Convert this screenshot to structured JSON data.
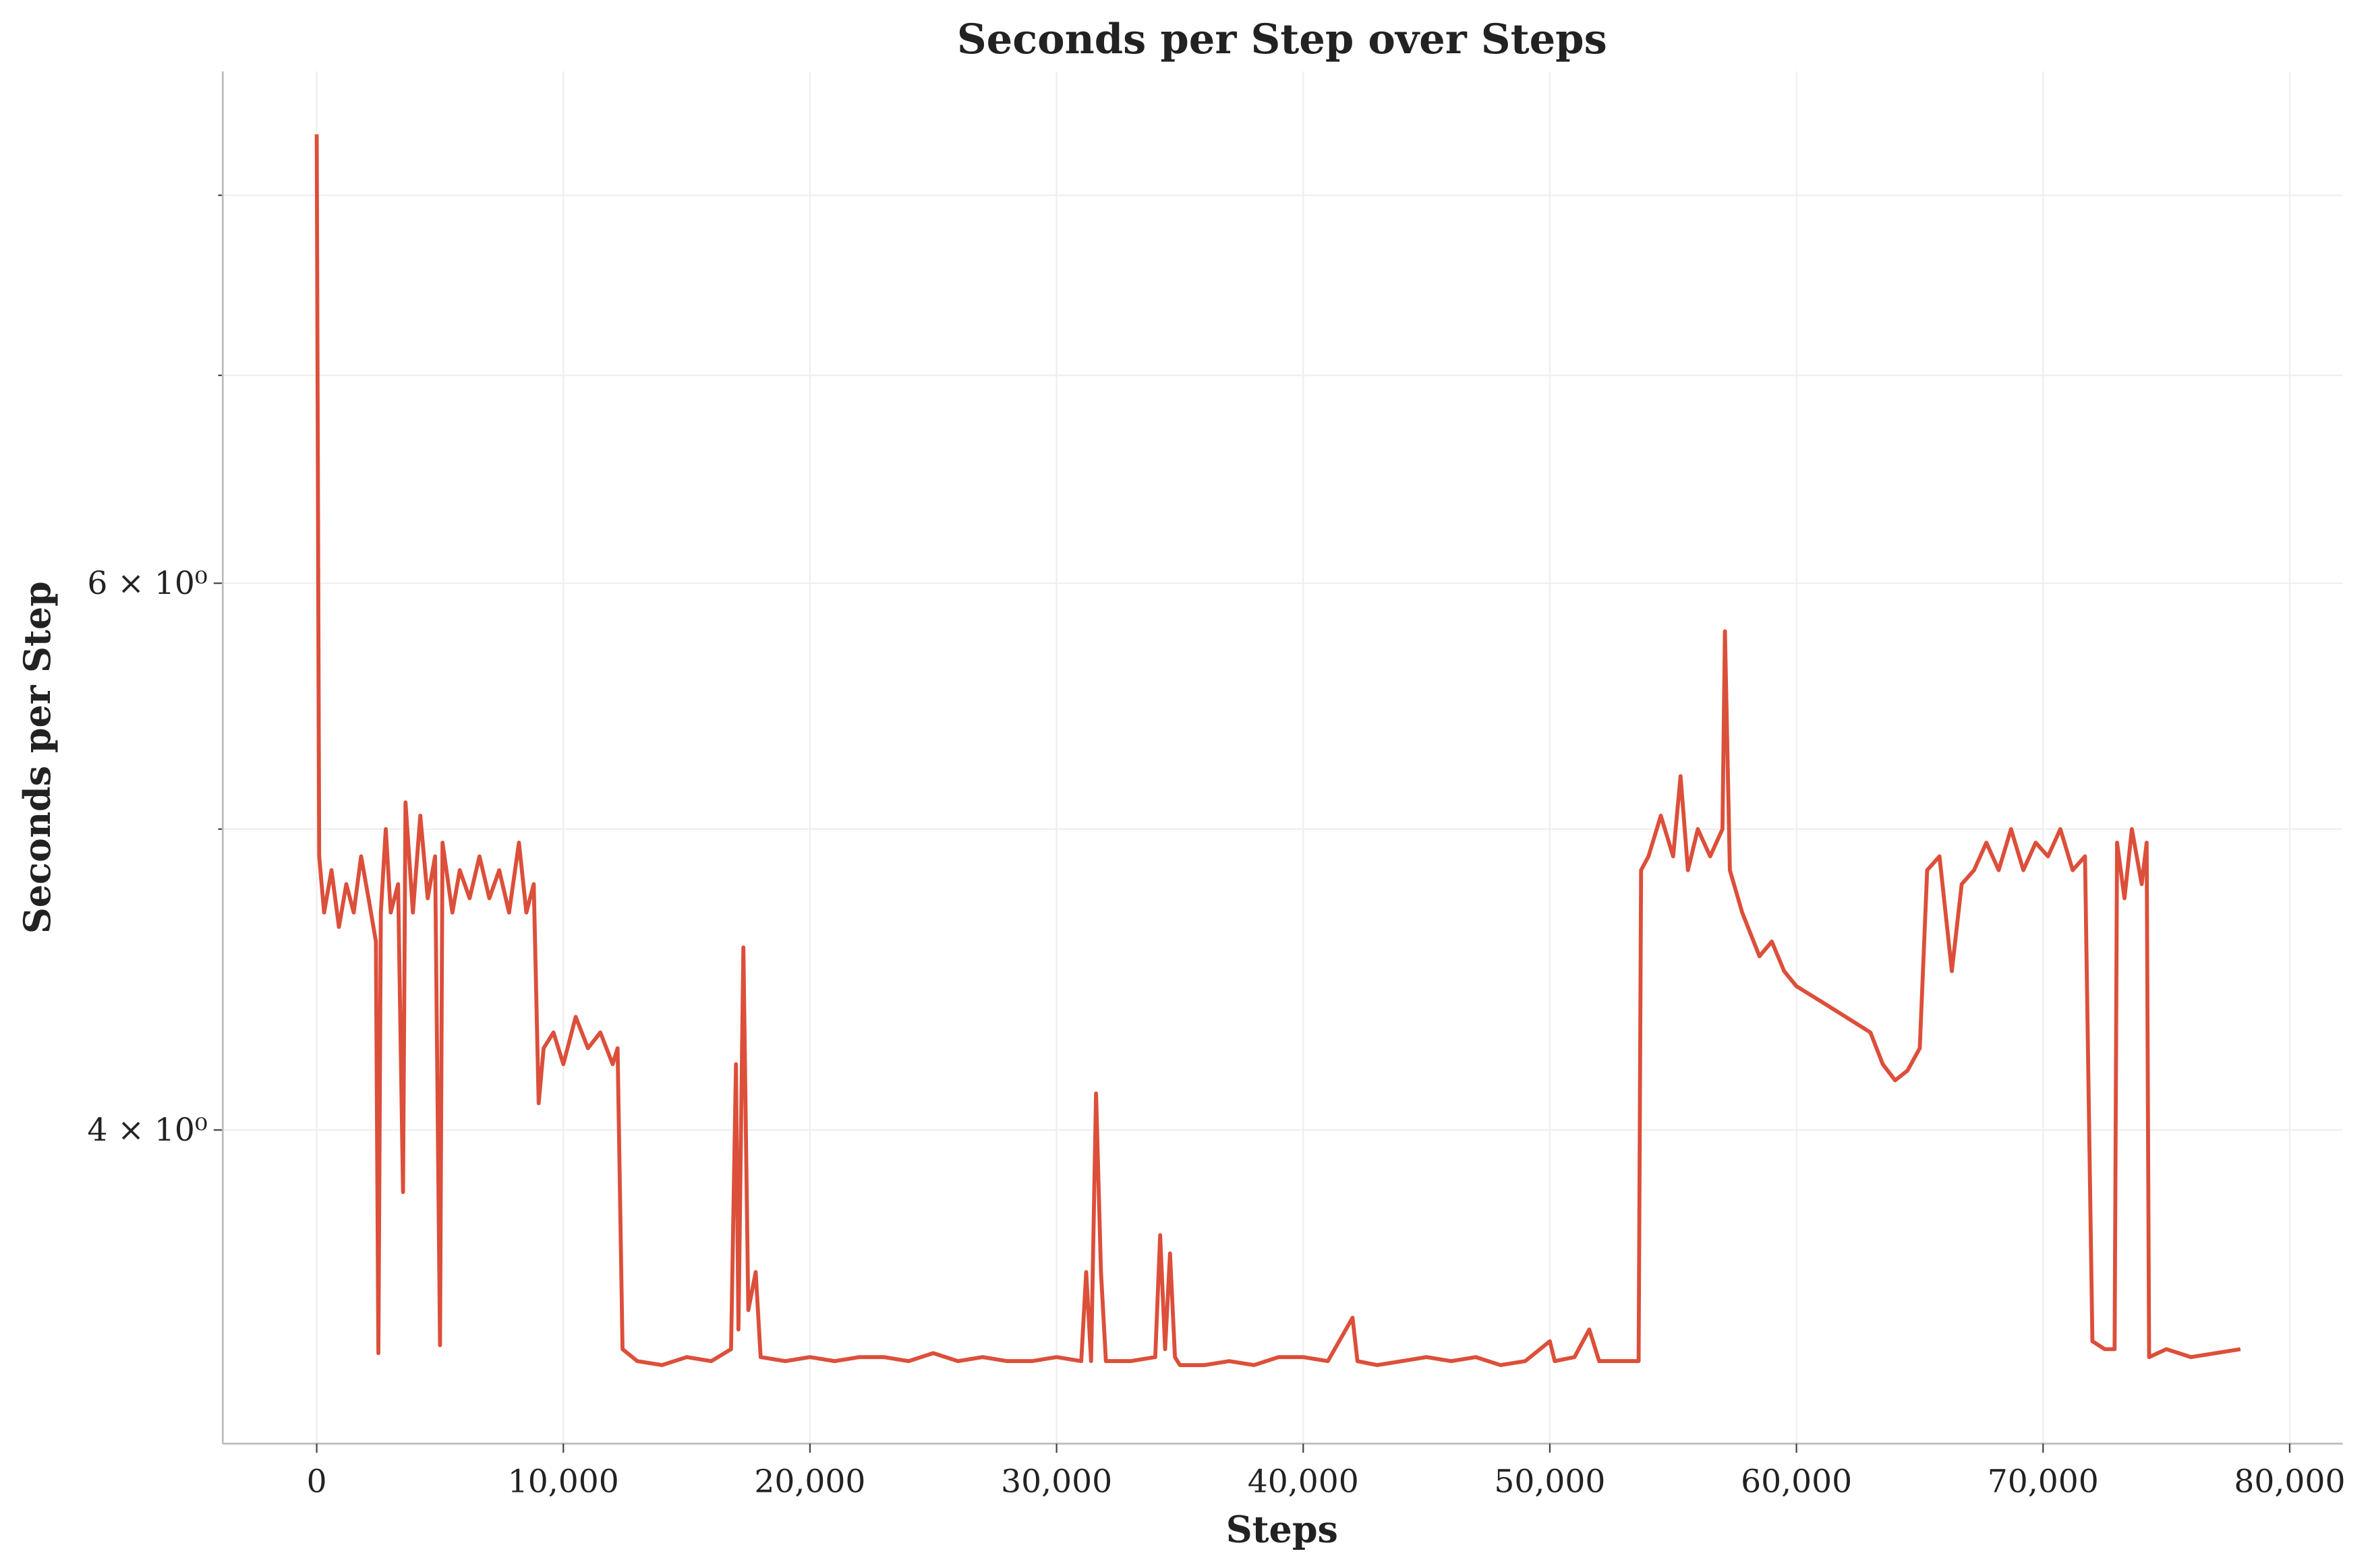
{
  "chart_data": {
    "type": "line",
    "title": "Seconds per Step over Steps",
    "xlabel": "Steps",
    "ylabel": "Seconds per Step",
    "yscale": "log",
    "grid": true,
    "xlim": [
      -3810,
      82150
    ],
    "xticks": [
      0,
      {
        "value": 10000,
        "label": "10,000"
      },
      {
        "value": 20000,
        "label": "20,000"
      },
      {
        "value": 30000,
        "label": "30,000"
      },
      {
        "value": 40000,
        "label": "40,000"
      },
      {
        "value": 50000,
        "label": "50,000"
      },
      {
        "value": 60000,
        "label": "60,000"
      },
      {
        "value": 70000,
        "label": "70,000"
      },
      {
        "value": 80000,
        "label": "80,000"
      }
    ],
    "ylim": [
      3.17,
      8.77
    ],
    "yticks": [
      {
        "value": 4,
        "label": "4 × 10⁰"
      },
      {
        "value": 6,
        "label": "6 × 10⁰"
      }
    ],
    "yminor_ticks": [
      5,
      7,
      8
    ],
    "series": [
      {
        "name": "Seconds per Step",
        "color": "#dc4f3a",
        "x": [
          0,
          100,
          300,
          600,
          900,
          1200,
          1500,
          1800,
          2100,
          2400,
          2500,
          2600,
          2800,
          3000,
          3300,
          3500,
          3600,
          3900,
          4200,
          4500,
          4800,
          5000,
          5100,
          5500,
          5800,
          6200,
          6600,
          7000,
          7400,
          7800,
          8200,
          8500,
          8800,
          9000,
          9200,
          9600,
          10000,
          10500,
          11000,
          11500,
          12000,
          12200,
          12400,
          13000,
          14000,
          15000,
          16000,
          16800,
          17000,
          17100,
          17300,
          17500,
          17800,
          18000,
          19000,
          20000,
          21000,
          22000,
          23000,
          24000,
          25000,
          26000,
          27000,
          28000,
          29000,
          30000,
          31000,
          31200,
          31400,
          31600,
          31800,
          32000,
          33000,
          34000,
          34200,
          34400,
          34600,
          34800,
          35000,
          36000,
          37000,
          38000,
          39000,
          40000,
          41000,
          42000,
          42200,
          43000,
          44000,
          45000,
          46000,
          47000,
          48000,
          49000,
          50000,
          50200,
          51000,
          51600,
          52000,
          53000,
          53600,
          53700,
          54000,
          54500,
          55000,
          55300,
          55600,
          56000,
          56500,
          57000,
          57100,
          57300,
          57800,
          58500,
          59000,
          59500,
          60000,
          61000,
          62000,
          63000,
          63500,
          64000,
          64500,
          65000,
          65300,
          65800,
          66300,
          66700,
          67200,
          67700,
          68200,
          68700,
          69200,
          69700,
          70200,
          70700,
          71200,
          71700,
          72000,
          72500,
          72900,
          73000,
          73300,
          73600,
          74000,
          74200,
          74300,
          75000,
          76000,
          77000,
          78000
        ],
        "values": [
          8.37,
          4.9,
          4.7,
          4.85,
          4.65,
          4.8,
          4.7,
          4.9,
          4.75,
          4.6,
          3.39,
          4.7,
          5.0,
          4.7,
          4.8,
          3.82,
          5.1,
          4.7,
          5.05,
          4.75,
          4.9,
          3.41,
          4.95,
          4.7,
          4.85,
          4.75,
          4.9,
          4.75,
          4.85,
          4.7,
          4.95,
          4.7,
          4.8,
          4.08,
          4.25,
          4.3,
          4.2,
          4.35,
          4.25,
          4.3,
          4.2,
          4.25,
          3.4,
          3.37,
          3.36,
          3.38,
          3.37,
          3.4,
          4.2,
          3.45,
          4.58,
          3.5,
          3.6,
          3.38,
          3.37,
          3.38,
          3.37,
          3.38,
          3.38,
          3.37,
          3.39,
          3.37,
          3.38,
          3.37,
          3.37,
          3.38,
          3.37,
          3.6,
          3.37,
          4.11,
          3.6,
          3.37,
          3.37,
          3.38,
          3.7,
          3.4,
          3.65,
          3.38,
          3.36,
          3.36,
          3.37,
          3.36,
          3.38,
          3.38,
          3.37,
          3.48,
          3.37,
          3.36,
          3.37,
          3.38,
          3.37,
          3.38,
          3.36,
          3.37,
          3.42,
          3.37,
          3.38,
          3.45,
          3.37,
          3.37,
          3.37,
          4.85,
          4.9,
          5.05,
          4.9,
          5.2,
          4.85,
          5.0,
          4.9,
          5.0,
          5.79,
          4.85,
          4.7,
          4.55,
          4.6,
          4.5,
          4.45,
          4.4,
          4.35,
          4.3,
          4.2,
          4.15,
          4.18,
          4.25,
          4.85,
          4.9,
          4.5,
          4.8,
          4.85,
          4.95,
          4.85,
          5.0,
          4.85,
          4.95,
          4.9,
          5.0,
          4.85,
          4.9,
          3.42,
          3.4,
          3.4,
          4.95,
          4.75,
          5.0,
          4.8,
          4.95,
          3.38,
          3.4,
          3.38,
          3.39,
          3.4
        ]
      }
    ]
  }
}
